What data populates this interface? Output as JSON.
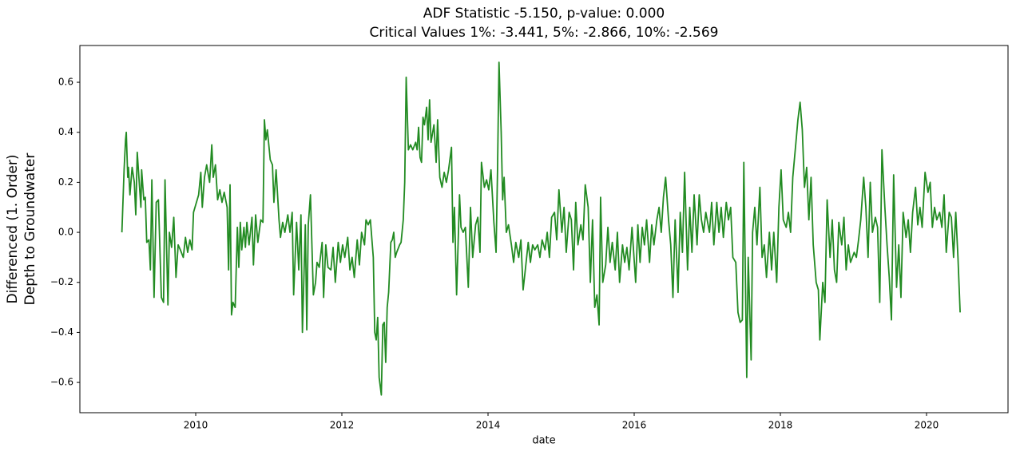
{
  "chart_data": {
    "type": "line",
    "title": [
      "ADF Statistic -5.150, p-value: 0.000",
      "Critical Values 1%: -3.441, 5%: -2.866, 10%: -2.569"
    ],
    "xlabel": "date",
    "ylabel": [
      "Differenced (1. Order)",
      "Depth to Groundwater"
    ],
    "color": "#228b22",
    "xlim": [
      2008.415,
      2021.115
    ],
    "xticks": [
      2010,
      2012,
      2014,
      2016,
      2018,
      2020
    ],
    "ylim": [
      -0.721,
      0.747
    ],
    "yticks": [
      {
        "value": -0.6,
        "label": "−0.6"
      },
      {
        "value": -0.4,
        "label": "−0.4"
      },
      {
        "value": -0.2,
        "label": "−0.2"
      },
      {
        "value": 0,
        "label": "0.0"
      },
      0.2,
      0.4,
      0.6
    ],
    "x": [
      2008.99,
      2009.02,
      2009.04,
      2009.05,
      2009.07,
      2009.08,
      2009.1,
      2009.13,
      2009.16,
      2009.18,
      2009.2,
      2009.25,
      2009.26,
      2009.29,
      2009.31,
      2009.33,
      2009.36,
      2009.38,
      2009.4,
      2009.43,
      2009.46,
      2009.49,
      2009.53,
      2009.56,
      2009.58,
      2009.62,
      2009.64,
      2009.67,
      2009.7,
      2009.73,
      2009.76,
      2009.79,
      2009.83,
      2009.86,
      2009.89,
      2009.92,
      2009.95,
      2009.97,
      2010.01,
      2010.04,
      2010.07,
      2010.09,
      2010.12,
      2010.15,
      2010.19,
      2010.22,
      2010.24,
      2010.27,
      2010.3,
      2010.33,
      2010.36,
      2010.39,
      2010.43,
      2010.45,
      2010.47,
      2010.49,
      2010.51,
      2010.54,
      2010.57,
      2010.59,
      2010.61,
      2010.63,
      2010.66,
      2010.68,
      2010.7,
      2010.73,
      2010.77,
      2010.79,
      2010.82,
      2010.85,
      2010.89,
      2010.92,
      2010.94,
      2010.96,
      2010.98,
      2011.02,
      2011.05,
      2011.07,
      2011.1,
      2011.14,
      2011.16,
      2011.19,
      2011.22,
      2011.26,
      2011.29,
      2011.32,
      2011.34,
      2011.38,
      2011.41,
      2011.44,
      2011.46,
      2011.5,
      2011.52,
      2011.54,
      2011.57,
      2011.61,
      2011.64,
      2011.66,
      2011.69,
      2011.73,
      2011.75,
      2011.78,
      2011.81,
      2011.85,
      2011.88,
      2011.91,
      2011.95,
      2011.98,
      2012.01,
      2012.04,
      2012.08,
      2012.11,
      2012.14,
      2012.17,
      2012.21,
      2012.24,
      2012.27,
      2012.31,
      2012.33,
      2012.36,
      2012.39,
      2012.43,
      2012.45,
      2012.47,
      2012.49,
      2012.51,
      2012.54,
      2012.56,
      2012.58,
      2012.6,
      2012.62,
      2012.64,
      2012.67,
      2012.69,
      2012.71,
      2012.73,
      2012.75,
      2012.79,
      2012.81,
      2012.84,
      2012.86,
      2012.88,
      2012.91,
      2012.94,
      2012.97,
      2013.01,
      2013.03,
      2013.05,
      2013.07,
      2013.09,
      2013.11,
      2013.13,
      2013.16,
      2013.18,
      2013.2,
      2013.22,
      2013.26,
      2013.29,
      2013.31,
      2013.34,
      2013.37,
      2013.4,
      2013.43,
      2013.46,
      2013.5,
      2013.52,
      2013.54,
      2013.57,
      2013.61,
      2013.63,
      2013.66,
      2013.69,
      2013.73,
      2013.76,
      2013.79,
      2013.83,
      2013.86,
      2013.89,
      2013.91,
      2013.95,
      2013.98,
      2014.01,
      2014.04,
      2014.08,
      2014.11,
      2014.13,
      2014.15,
      2014.18,
      2014.2,
      2014.22,
      2014.25,
      2014.28,
      2014.32,
      2014.35,
      2014.38,
      2014.42,
      2014.45,
      2014.48,
      2014.51,
      2014.55,
      2014.58,
      2014.61,
      2014.64,
      2014.68,
      2014.71,
      2014.74,
      2014.78,
      2014.81,
      2014.84,
      2014.87,
      2014.91,
      2014.94,
      2014.97,
      2015.01,
      2015.04,
      2015.07,
      2015.11,
      2015.14,
      2015.17,
      2015.2,
      2015.23,
      2015.27,
      2015.3,
      2015.33,
      2015.37,
      2015.4,
      2015.43,
      2015.46,
      2015.49,
      2015.52,
      2015.54,
      2015.57,
      2015.61,
      2015.64,
      2015.67,
      2015.7,
      2015.74,
      2015.77,
      2015.8,
      2015.84,
      2015.87,
      2015.9,
      2015.93,
      2015.97,
      2016.02,
      2016.05,
      2016.08,
      2016.11,
      2016.14,
      2016.17,
      2016.21,
      2016.24,
      2016.27,
      2016.31,
      2016.34,
      2016.37,
      2016.4,
      2016.43,
      2016.47,
      2016.5,
      2016.53,
      2016.56,
      2016.6,
      2016.63,
      2016.66,
      2016.69,
      2016.73,
      2016.76,
      2016.79,
      2016.82,
      2016.86,
      2016.89,
      2016.92,
      2016.95,
      2016.98,
      2017.03,
      2017.06,
      2017.09,
      2017.13,
      2017.16,
      2017.19,
      2017.22,
      2017.26,
      2017.29,
      2017.32,
      2017.35,
      2017.39,
      2017.42,
      2017.45,
      2017.48,
      2017.5,
      2017.54,
      2017.56,
      2017.6,
      2017.62,
      2017.65,
      2017.68,
      2017.72,
      2017.75,
      2017.78,
      2017.81,
      2017.85,
      2017.88,
      2017.91,
      2017.95,
      2017.98,
      2018.01,
      2018.04,
      2018.08,
      2018.11,
      2018.14,
      2018.17,
      2018.21,
      2018.24,
      2018.27,
      2018.3,
      2018.33,
      2018.36,
      2018.39,
      2018.42,
      2018.45,
      2018.49,
      2018.52,
      2018.54,
      2018.58,
      2018.61,
      2018.64,
      2018.68,
      2018.71,
      2018.74,
      2018.77,
      2018.8,
      2018.84,
      2018.87,
      2018.9,
      2018.93,
      2018.96,
      2019.01,
      2019.04,
      2019.07,
      2019.1,
      2019.14,
      2019.17,
      2019.2,
      2019.23,
      2019.26,
      2019.3,
      2019.33,
      2019.36,
      2019.39,
      2019.43,
      2019.46,
      2019.49,
      2019.52,
      2019.55,
      2019.59,
      2019.62,
      2019.65,
      2019.68,
      2019.72,
      2019.75,
      2019.78,
      2019.81,
      2019.85,
      2019.88,
      2019.91,
      2019.94,
      2019.98,
      2020.02,
      2020.05,
      2020.08,
      2020.11,
      2020.14,
      2020.18,
      2020.21,
      2020.24,
      2020.27,
      2020.31,
      2020.34,
      2020.37,
      2020.4,
      2020.43,
      2020.46
    ],
    "values": [
      0,
      0.25,
      0.37,
      0.4,
      0.22,
      0.26,
      0.15,
      0.26,
      0.2,
      0.07,
      0.32,
      0.1,
      0.25,
      0.13,
      0.14,
      -0.04,
      -0.03,
      -0.15,
      0.21,
      -0.26,
      0.12,
      0.13,
      -0.26,
      -0.28,
      0.21,
      -0.29,
      0.0,
      -0.06,
      0.06,
      -0.18,
      -0.05,
      -0.07,
      -0.1,
      -0.02,
      -0.08,
      -0.03,
      -0.07,
      0.08,
      0.12,
      0.15,
      0.24,
      0.1,
      0.22,
      0.27,
      0.2,
      0.35,
      0.22,
      0.27,
      0.13,
      0.17,
      0.12,
      0.16,
      0.1,
      -0.15,
      0.19,
      -0.33,
      -0.28,
      -0.3,
      0.02,
      -0.14,
      0.04,
      -0.07,
      0.02,
      -0.06,
      0.04,
      -0.05,
      0.06,
      -0.13,
      0.07,
      -0.04,
      0.05,
      0.04,
      0.45,
      0.37,
      0.41,
      0.29,
      0.27,
      0.12,
      0.25,
      0.05,
      -0.02,
      0.04,
      0.0,
      0.07,
      0.0,
      0.08,
      -0.25,
      0.04,
      -0.15,
      0.07,
      -0.4,
      0.03,
      -0.39,
      0.03,
      0.15,
      -0.25,
      -0.2,
      -0.12,
      -0.14,
      -0.04,
      -0.26,
      -0.05,
      -0.14,
      -0.15,
      -0.06,
      -0.2,
      -0.04,
      -0.12,
      -0.05,
      -0.1,
      -0.02,
      -0.15,
      -0.1,
      -0.18,
      -0.03,
      -0.13,
      0.0,
      -0.05,
      0.05,
      0.03,
      0.05,
      -0.1,
      -0.4,
      -0.43,
      -0.34,
      -0.58,
      -0.65,
      -0.37,
      -0.36,
      -0.52,
      -0.3,
      -0.24,
      -0.04,
      -0.03,
      0.0,
      -0.1,
      -0.08,
      -0.05,
      -0.04,
      0.05,
      0.2,
      0.62,
      0.33,
      0.35,
      0.33,
      0.36,
      0.33,
      0.42,
      0.3,
      0.28,
      0.46,
      0.43,
      0.5,
      0.37,
      0.53,
      0.36,
      0.43,
      0.28,
      0.45,
      0.22,
      0.18,
      0.24,
      0.2,
      0.25,
      0.34,
      -0.04,
      0.1,
      -0.25,
      0.15,
      0.02,
      0.0,
      0.02,
      -0.22,
      0.1,
      -0.1,
      0.03,
      0.06,
      -0.08,
      0.28,
      0.18,
      0.21,
      0.17,
      0.25,
      0.04,
      -0.08,
      0.25,
      0.68,
      0.4,
      0.13,
      0.22,
      0.0,
      0.03,
      -0.05,
      -0.12,
      -0.04,
      -0.1,
      -0.03,
      -0.23,
      -0.15,
      -0.04,
      -0.12,
      -0.05,
      -0.07,
      -0.05,
      -0.1,
      -0.03,
      -0.07,
      0.0,
      -0.1,
      0.06,
      0.08,
      -0.03,
      0.17,
      0.0,
      0.1,
      -0.08,
      0.08,
      0.05,
      -0.15,
      0.12,
      -0.05,
      0.03,
      -0.03,
      0.19,
      0.1,
      -0.2,
      0.05,
      -0.3,
      -0.25,
      -0.37,
      0.14,
      -0.2,
      -0.13,
      0.02,
      -0.12,
      -0.04,
      -0.15,
      0.0,
      -0.2,
      -0.05,
      -0.12,
      -0.06,
      -0.15,
      0.02,
      -0.2,
      0.03,
      -0.12,
      0.02,
      -0.05,
      0.05,
      -0.12,
      0.03,
      -0.05,
      0.05,
      0.1,
      0.0,
      0.14,
      0.22,
      0.05,
      -0.05,
      -0.26,
      0.05,
      -0.24,
      0.08,
      -0.08,
      0.24,
      -0.15,
      0.1,
      -0.08,
      0.15,
      -0.05,
      0.15,
      0.05,
      0.0,
      0.08,
      0.0,
      0.12,
      -0.05,
      0.12,
      0.0,
      0.1,
      -0.02,
      0.12,
      0.05,
      0.1,
      -0.1,
      -0.12,
      -0.32,
      -0.36,
      -0.35,
      0.28,
      -0.58,
      -0.1,
      -0.51,
      0.0,
      0.1,
      -0.05,
      0.18,
      -0.1,
      -0.05,
      -0.18,
      0.0,
      -0.15,
      0.0,
      -0.2,
      0.1,
      0.25,
      0.05,
      0.02,
      0.08,
      0.0,
      0.22,
      0.35,
      0.45,
      0.52,
      0.41,
      0.18,
      0.26,
      0.05,
      0.22,
      -0.05,
      -0.2,
      -0.23,
      -0.43,
      -0.2,
      -0.28,
      0.13,
      -0.1,
      0.05,
      -0.15,
      -0.2,
      0.04,
      -0.05,
      0.06,
      -0.15,
      -0.05,
      -0.12,
      -0.08,
      -0.1,
      -0.03,
      0.05,
      0.22,
      0.1,
      -0.1,
      0.2,
      0.0,
      0.06,
      0.02,
      -0.28,
      0.33,
      0.1,
      -0.05,
      -0.18,
      -0.35,
      0.23,
      -0.22,
      -0.05,
      -0.26,
      0.08,
      -0.02,
      0.05,
      -0.08,
      0.08,
      0.18,
      0.03,
      0.1,
      0.02,
      0.24,
      0.16,
      0.2,
      0.02,
      0.1,
      0.05,
      0.08,
      0.02,
      0.15,
      -0.08,
      0.08,
      0.06,
      -0.1,
      0.08,
      -0.1,
      -0.32
    ]
  }
}
